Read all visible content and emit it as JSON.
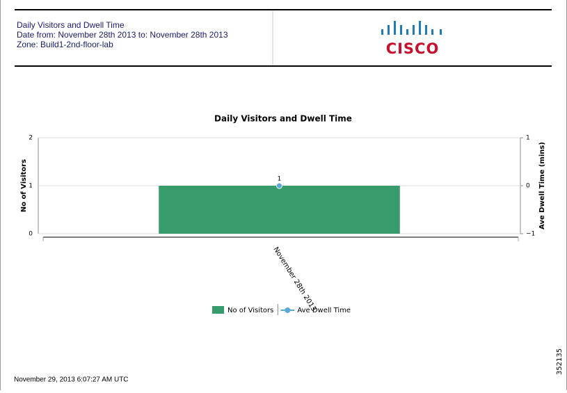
{
  "header": {
    "lines": [
      "Daily Visitors and Dwell Time",
      "Date from: November 28th 2013 to: November 28th 2013",
      "Zone: Build1-2nd-floor-lab"
    ],
    "logo_text": "CISCO"
  },
  "chart_data": {
    "type": "bar",
    "title": "Daily Visitors and Dwell Time",
    "categories": [
      "November 28th 2013"
    ],
    "y_label": "No of Visitors",
    "y2_label": "Ave Dwell Time (mins)",
    "series": [
      {
        "name": "No of Visitors",
        "color": "#379b6b",
        "values": [
          1
        ]
      },
      {
        "name": "Ave Dwell Time",
        "type": "line",
        "axis": "y2",
        "color": "#5aa7d9",
        "values": [
          0
        ]
      }
    ],
    "ylim": [
      0,
      2
    ],
    "yticks": [
      0,
      1,
      2
    ],
    "y2lim": [
      -1,
      1
    ],
    "y2ticks": [
      {
        "value": -1,
        "label": "−1"
      },
      0,
      1
    ],
    "grid": true
  },
  "footer": {
    "timestamp": "November 29, 2013 6:07:27 AM UTC",
    "figure_id": "352135"
  }
}
